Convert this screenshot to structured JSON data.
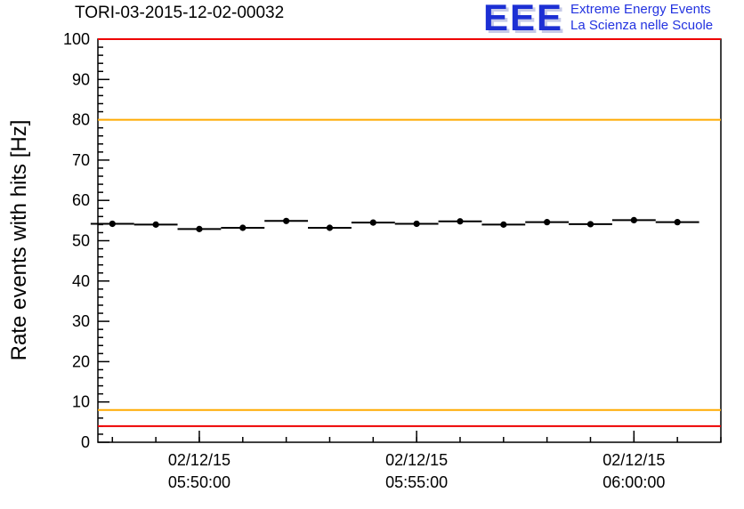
{
  "page": {
    "title": "TORI-03-2015-12-02-00032"
  },
  "logo": {
    "acronym": "EEE",
    "line1": "Extreme Energy Events",
    "line2": "La Scienza nelle Scuole",
    "acronym_color": "#1c2fd4",
    "text_color": "#2333e0",
    "shadow_color": "#c6cae8"
  },
  "chart_data": {
    "type": "scatter",
    "title": "TORI-03-2015-12-02-00032",
    "xlabel": "",
    "ylabel": "Rate events with hits [Hz]",
    "ylim": [
      0,
      100
    ],
    "grid": false,
    "legend": "none",
    "marker": "filled-circle",
    "marker_color": "#000000",
    "error_bar_halfwidth_seconds": 30,
    "y_axis": {
      "major_step": 10,
      "minor_step": 2,
      "tick_labels": [
        0,
        10,
        20,
        30,
        40,
        50,
        60,
        70,
        80,
        90,
        100
      ]
    },
    "x_axis": {
      "min": "05:47:40",
      "max": "06:02:00",
      "minor_step_seconds": 60,
      "labels": [
        {
          "date": "02/12/15",
          "time": "05:50:00"
        },
        {
          "date": "02/12/15",
          "time": "05:55:00"
        },
        {
          "date": "02/12/15",
          "time": "06:00:00"
        }
      ]
    },
    "points": [
      {
        "t": "05:48:00",
        "y": 54.2
      },
      {
        "t": "05:49:00",
        "y": 54.0
      },
      {
        "t": "05:50:00",
        "y": 52.9
      },
      {
        "t": "05:51:00",
        "y": 53.2
      },
      {
        "t": "05:52:00",
        "y": 54.9
      },
      {
        "t": "05:53:00",
        "y": 53.2
      },
      {
        "t": "05:54:00",
        "y": 54.5
      },
      {
        "t": "05:55:00",
        "y": 54.2
      },
      {
        "t": "05:56:00",
        "y": 54.8
      },
      {
        "t": "05:57:00",
        "y": 54.0
      },
      {
        "t": "05:58:00",
        "y": 54.6
      },
      {
        "t": "05:59:00",
        "y": 54.1
      },
      {
        "t": "06:00:00",
        "y": 55.1
      },
      {
        "t": "06:01:00",
        "y": 54.6
      }
    ],
    "threshold_lines": [
      {
        "y": 100,
        "color": "#ee0000",
        "name": "upper-alarm"
      },
      {
        "y": 80,
        "color": "#ffaa00",
        "name": "upper-warning"
      },
      {
        "y": 8,
        "color": "#ffaa00",
        "name": "lower-warning"
      },
      {
        "y": 4,
        "color": "#ee0000",
        "name": "lower-alarm"
      }
    ]
  }
}
